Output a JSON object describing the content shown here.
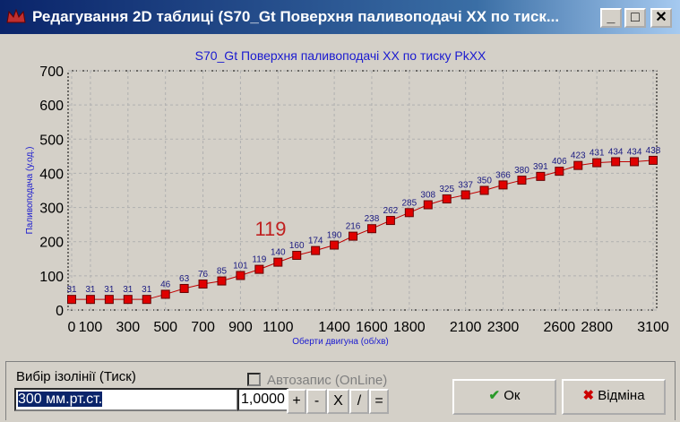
{
  "window": {
    "title": "Редагування 2D таблиці (S70_Gt Поверхня паливоподачі XX по тиск..."
  },
  "chart_data": {
    "type": "line",
    "title": "S70_Gt Поверхня паливоподачі XX по тиску PkXX",
    "x_label": "Оберти двигуна (об/хв)",
    "y_label": "Паливоподача (у.од.)",
    "x": [
      0,
      100,
      200,
      300,
      400,
      500,
      600,
      700,
      800,
      900,
      1000,
      1100,
      1200,
      1300,
      1400,
      1500,
      1600,
      1700,
      1800,
      1900,
      2000,
      2100,
      2200,
      2300,
      2400,
      2500,
      2600,
      2700,
      2800,
      2900,
      3000,
      3100
    ],
    "values": [
      31,
      31,
      31,
      31,
      31,
      46,
      63,
      76,
      85,
      101,
      119,
      140,
      160,
      174,
      190,
      216,
      238,
      262,
      285,
      308,
      325,
      337,
      350,
      366,
      380,
      391,
      406,
      423,
      431,
      434,
      434,
      438
    ],
    "color": "#c00000",
    "marker_color": "#e00000",
    "xlim": [
      0,
      3100
    ],
    "xticks": [
      0,
      100,
      300,
      500,
      700,
      900,
      1100,
      1400,
      1600,
      1800,
      2100,
      2300,
      2600,
      2800,
      3100
    ],
    "ylim": [
      0,
      700
    ],
    "yticks": [
      0,
      100,
      200,
      300,
      400,
      500,
      600,
      700
    ],
    "grid": true,
    "annotation": "119"
  },
  "controls": {
    "isoline_label": "Вибір ізолінії (Тиск)",
    "isoline_value": "300 мм.рт.ст.",
    "factor": "1,0000",
    "operations": [
      "+",
      "-",
      "X",
      "/",
      "="
    ],
    "autosave": "Автозапис (OnLine)",
    "ok": "Ок",
    "cancel": "Відміна"
  }
}
